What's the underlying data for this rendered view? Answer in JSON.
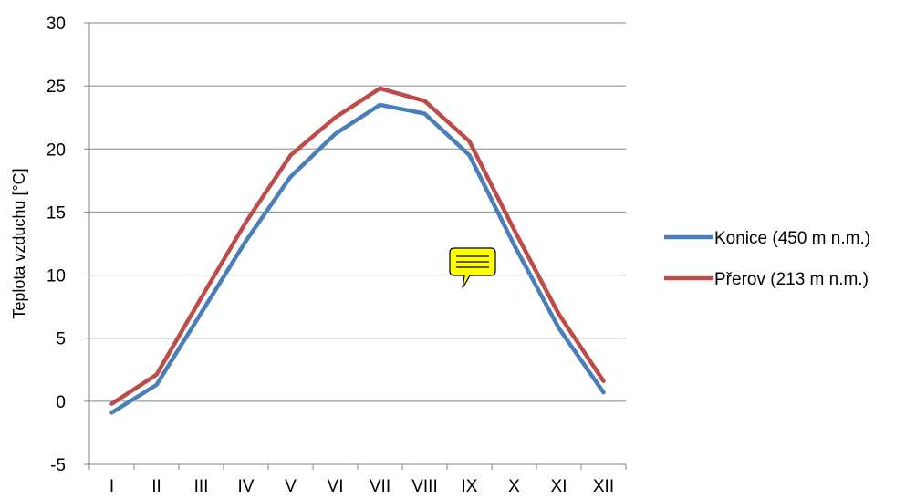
{
  "chart_data": {
    "type": "line",
    "title": "",
    "xlabel": "",
    "ylabel": "Teplota vzduchu [°C]",
    "ylim": [
      -5,
      30
    ],
    "yticks": [
      -5,
      0,
      5,
      10,
      15,
      20,
      25,
      30
    ],
    "grid": true,
    "legend_position": "right",
    "categories": [
      "I",
      "II",
      "III",
      "IV",
      "V",
      "VI",
      "VII",
      "VIII",
      "IX",
      "X",
      "XI",
      "XII"
    ],
    "series": [
      {
        "name": "Konice (450 m n.m.)",
        "color": "#4a7ebb",
        "values": [
          -0.9,
          1.3,
          7.0,
          12.7,
          17.8,
          21.2,
          23.5,
          22.8,
          19.5,
          12.4,
          5.8,
          0.7
        ]
      },
      {
        "name": "Přerov (213 m n.m.)",
        "color": "#be4b48",
        "values": [
          -0.2,
          2.1,
          8.2,
          14.2,
          19.5,
          22.5,
          24.8,
          23.8,
          20.6,
          13.6,
          6.9,
          1.6
        ]
      }
    ]
  },
  "comment_icon": {
    "icon": "speech-bubble-icon",
    "color": "#ffff00"
  }
}
